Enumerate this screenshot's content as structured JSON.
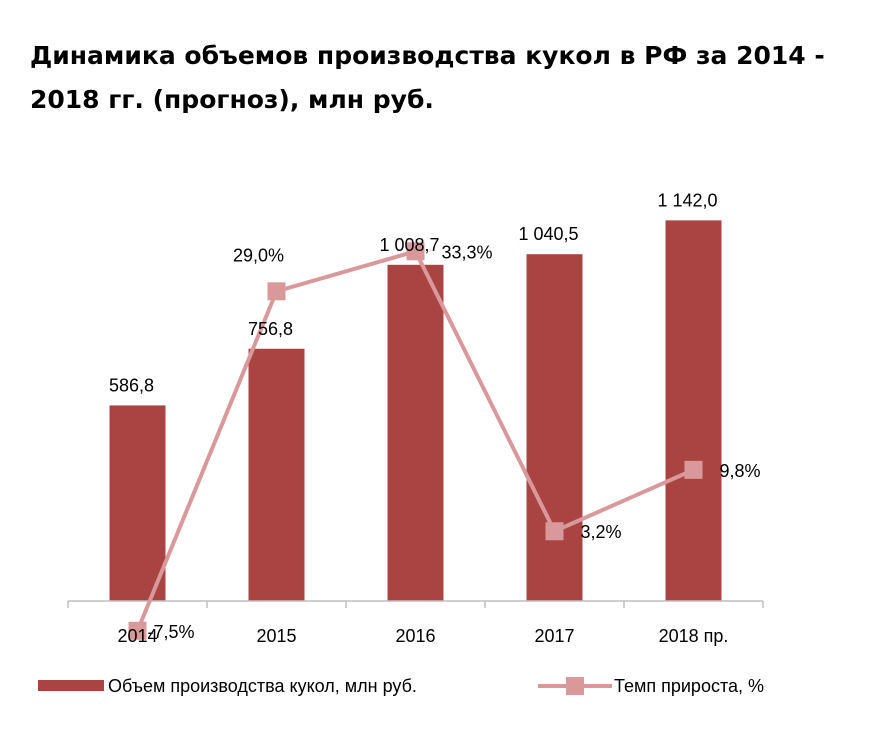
{
  "title": "Динамика объемов производства кукол в РФ за 2014 - 2018 гг. (прогноз), млн руб.",
  "colors": {
    "bar": "#A94442",
    "line": "#D9999B",
    "axis": "#BFBFBF"
  },
  "chart_data": {
    "type": "bar",
    "title": "Динамика объемов производства кукол в РФ за 2014 - 2018 гг. (прогноз), млн руб.",
    "categories": [
      "2014",
      "2015",
      "2016",
      "2017",
      "2018 пр."
    ],
    "series": [
      {
        "name": "Объем производства кукол, млн руб.",
        "type": "bar",
        "axis": "primary",
        "values": [
          586.8,
          756.8,
          1008.7,
          1040.5,
          1142.0
        ],
        "labels": [
          "586,8",
          "756,8",
          "1 008,7",
          "1 040,5",
          "1 142,0"
        ]
      },
      {
        "name": "Темп прироста, %",
        "type": "line",
        "axis": "secondary",
        "values": [
          -7.5,
          29.0,
          33.3,
          3.2,
          9.8
        ],
        "labels": [
          "-7,5%",
          "29,0%",
          "33,3%",
          "3,2%",
          "9,8%"
        ]
      }
    ],
    "legend": "bottom",
    "grid": false
  }
}
